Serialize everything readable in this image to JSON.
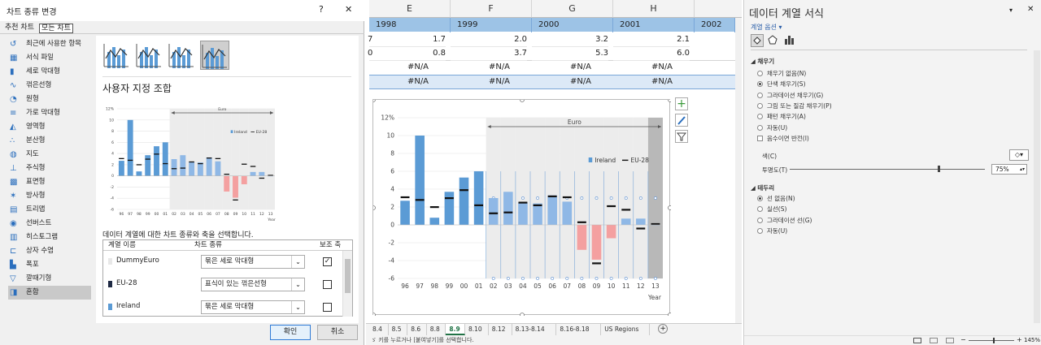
{
  "dialog": {
    "title": "차트 종류 변경",
    "help": "?",
    "close": "✕",
    "tabs": [
      "추천 차트",
      "모든 차트"
    ],
    "sidebar": [
      "최근에 사용한 항목",
      "서식 파일",
      "세로 막대형",
      "꺾은선형",
      "원형",
      "가로 막대형",
      "영역형",
      "분산형",
      "지도",
      "주식형",
      "표면형",
      "방사형",
      "트리맵",
      "선버스트",
      "히스토그램",
      "상자 수염",
      "폭포",
      "깔때기형",
      "혼합"
    ],
    "combo_title": "사용자 지정 조합",
    "series_prompt": "데이터 계열에 대한 차트 종류와 축을 선택합니다.",
    "table_headers": {
      "name": "계열 이름",
      "type": "차트 종류",
      "axis": "보조 축"
    },
    "rows": [
      {
        "name": "DummyEuro",
        "type": "묶은 세로 막대형",
        "checked": "✓",
        "color": "#e8e8e8"
      },
      {
        "name": "EU-28",
        "type": "표식이 있는 꺾은선형",
        "checked": "",
        "color": "#1f2a44"
      },
      {
        "name": "Ireland",
        "type": "묶은 세로 막대형",
        "checked": "",
        "color": "#5b9bd5"
      }
    ],
    "ok": "확인",
    "cancel": "취소"
  },
  "sheet": {
    "columns": [
      "E",
      "F",
      "G",
      "H"
    ],
    "years": [
      "1998",
      "1999",
      "2000",
      "2001",
      "2002"
    ],
    "row1": [
      "1.7",
      "2.0",
      "3.2",
      "2.1"
    ],
    "row1_prefix": "7",
    "row2": [
      "0.8",
      "3.7",
      "5.3",
      "6.0"
    ],
    "row2_prefix": "0",
    "na": "#N/A",
    "tabs": [
      "8.4",
      "8.5",
      "8.6",
      "8.8",
      "8.9",
      "8.10",
      "8.12",
      "8.13-8.14",
      "8.16-8.18",
      "US Regions"
    ],
    "active_tab": "8.9",
    "status": "ゞ 키를 누르거나 [붙여넣기]를 선택합니다."
  },
  "chart_data": {
    "type": "bar",
    "categories": [
      "96",
      "97",
      "98",
      "99",
      "00",
      "01",
      "02",
      "03",
      "04",
      "05",
      "06",
      "07",
      "08",
      "09",
      "10",
      "11",
      "12",
      "13"
    ],
    "series": [
      {
        "name": "Ireland",
        "values": [
          2.7,
          10.0,
          0.8,
          3.7,
          5.3,
          6.0,
          3.0,
          3.7,
          2.5,
          2.4,
          3.3,
          2.6,
          -2.8,
          -3.9,
          -1.5,
          0.7,
          0.7,
          0.0
        ]
      },
      {
        "name": "EU-28",
        "values": [
          3.1,
          2.8,
          2.0,
          3.0,
          3.9,
          2.2,
          1.3,
          1.4,
          2.5,
          2.2,
          3.2,
          3.1,
          0.3,
          -4.3,
          2.1,
          1.7,
          -0.4,
          0.1
        ]
      },
      {
        "name": "DummyEuro",
        "values": [
          null,
          null,
          null,
          null,
          null,
          null,
          12,
          12,
          12,
          12,
          12,
          12,
          12,
          12,
          12,
          12,
          12,
          12
        ]
      }
    ],
    "ylim": [
      -6,
      12
    ],
    "yticks": [
      12,
      10,
      8,
      6,
      4,
      2,
      0,
      -2,
      -4,
      -6
    ],
    "ytick_labels": [
      "12%",
      "10",
      "8",
      "6",
      "4",
      "2",
      "0",
      "-2",
      "-4",
      "-6"
    ],
    "xlabel": "Year",
    "band_label": "Euro",
    "legend": [
      "Ireland",
      "EU-28"
    ]
  },
  "format_pane": {
    "title": "데이터 계열 서식",
    "series_options": "계열 옵션",
    "fill_header": "채우기",
    "fill_options": [
      "채우기 없음(N)",
      "단색 채우기(S)",
      "그라데이션 채우기(G)",
      "그림 또는 질감 채우기(P)",
      "패턴 채우기(A)",
      "자동(U)"
    ],
    "fill_selected": 1,
    "invert": "음수이면 반전(I)",
    "color_label": "색(C)",
    "transparency_label": "투명도(T)",
    "transparency_value": "75%",
    "border_header": "테두리",
    "border_options": [
      "선 없음(N)",
      "실선(S)",
      "그라데이션 선(G)",
      "자동(U)"
    ],
    "border_selected": 0,
    "zoom": "145%"
  }
}
